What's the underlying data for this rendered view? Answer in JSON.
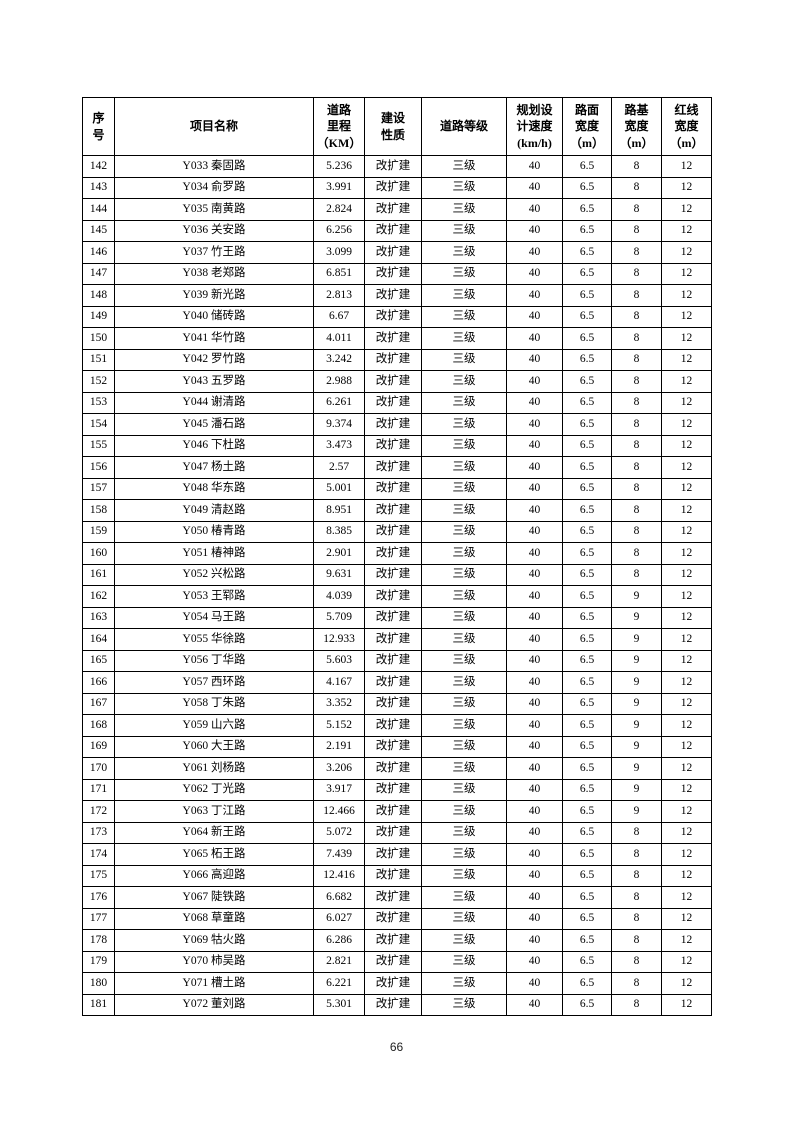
{
  "page": {
    "number": "66"
  },
  "table": {
    "headers": [
      "序\n号",
      "项目名称",
      "道路\n里程\n（KM）",
      "建设\n性质",
      "道路等级",
      "规划设\n计速度\n(km/h)",
      "路面\n宽度\n（m）",
      "路基\n宽度\n（m）",
      "红线\n宽度\n（m）"
    ],
    "rows": [
      [
        "142",
        "Y033 秦固路",
        "5.236",
        "改扩建",
        "三级",
        "40",
        "6.5",
        "8",
        "12"
      ],
      [
        "143",
        "Y034 俞罗路",
        "3.991",
        "改扩建",
        "三级",
        "40",
        "6.5",
        "8",
        "12"
      ],
      [
        "144",
        "Y035 南黄路",
        "2.824",
        "改扩建",
        "三级",
        "40",
        "6.5",
        "8",
        "12"
      ],
      [
        "145",
        "Y036 关安路",
        "6.256",
        "改扩建",
        "三级",
        "40",
        "6.5",
        "8",
        "12"
      ],
      [
        "146",
        "Y037 竹王路",
        "3.099",
        "改扩建",
        "三级",
        "40",
        "6.5",
        "8",
        "12"
      ],
      [
        "147",
        "Y038 老郑路",
        "6.851",
        "改扩建",
        "三级",
        "40",
        "6.5",
        "8",
        "12"
      ],
      [
        "148",
        "Y039 新光路",
        "2.813",
        "改扩建",
        "三级",
        "40",
        "6.5",
        "8",
        "12"
      ],
      [
        "149",
        "Y040 储砖路",
        "6.67",
        "改扩建",
        "三级",
        "40",
        "6.5",
        "8",
        "12"
      ],
      [
        "150",
        "Y041 华竹路",
        "4.011",
        "改扩建",
        "三级",
        "40",
        "6.5",
        "8",
        "12"
      ],
      [
        "151",
        "Y042 罗竹路",
        "3.242",
        "改扩建",
        "三级",
        "40",
        "6.5",
        "8",
        "12"
      ],
      [
        "152",
        "Y043 五罗路",
        "2.988",
        "改扩建",
        "三级",
        "40",
        "6.5",
        "8",
        "12"
      ],
      [
        "153",
        "Y044 谢清路",
        "6.261",
        "改扩建",
        "三级",
        "40",
        "6.5",
        "8",
        "12"
      ],
      [
        "154",
        "Y045 潘石路",
        "9.374",
        "改扩建",
        "三级",
        "40",
        "6.5",
        "8",
        "12"
      ],
      [
        "155",
        "Y046 下杜路",
        "3.473",
        "改扩建",
        "三级",
        "40",
        "6.5",
        "8",
        "12"
      ],
      [
        "156",
        "Y047 杨土路",
        "2.57",
        "改扩建",
        "三级",
        "40",
        "6.5",
        "8",
        "12"
      ],
      [
        "157",
        "Y048 华东路",
        "5.001",
        "改扩建",
        "三级",
        "40",
        "6.5",
        "8",
        "12"
      ],
      [
        "158",
        "Y049 清赵路",
        "8.951",
        "改扩建",
        "三级",
        "40",
        "6.5",
        "8",
        "12"
      ],
      [
        "159",
        "Y050 椿青路",
        "8.385",
        "改扩建",
        "三级",
        "40",
        "6.5",
        "8",
        "12"
      ],
      [
        "160",
        "Y051 椿神路",
        "2.901",
        "改扩建",
        "三级",
        "40",
        "6.5",
        "8",
        "12"
      ],
      [
        "161",
        "Y052 兴松路",
        "9.631",
        "改扩建",
        "三级",
        "40",
        "6.5",
        "8",
        "12"
      ],
      [
        "162",
        "Y053 王郓路",
        "4.039",
        "改扩建",
        "三级",
        "40",
        "6.5",
        "9",
        "12"
      ],
      [
        "163",
        "Y054 马王路",
        "5.709",
        "改扩建",
        "三级",
        "40",
        "6.5",
        "9",
        "12"
      ],
      [
        "164",
        "Y055 华徐路",
        "12.933",
        "改扩建",
        "三级",
        "40",
        "6.5",
        "9",
        "12"
      ],
      [
        "165",
        "Y056 丁华路",
        "5.603",
        "改扩建",
        "三级",
        "40",
        "6.5",
        "9",
        "12"
      ],
      [
        "166",
        "Y057 西环路",
        "4.167",
        "改扩建",
        "三级",
        "40",
        "6.5",
        "9",
        "12"
      ],
      [
        "167",
        "Y058 丁朱路",
        "3.352",
        "改扩建",
        "三级",
        "40",
        "6.5",
        "9",
        "12"
      ],
      [
        "168",
        "Y059 山六路",
        "5.152",
        "改扩建",
        "三级",
        "40",
        "6.5",
        "9",
        "12"
      ],
      [
        "169",
        "Y060 大王路",
        "2.191",
        "改扩建",
        "三级",
        "40",
        "6.5",
        "9",
        "12"
      ],
      [
        "170",
        "Y061 刘杨路",
        "3.206",
        "改扩建",
        "三级",
        "40",
        "6.5",
        "9",
        "12"
      ],
      [
        "171",
        "Y062 丁光路",
        "3.917",
        "改扩建",
        "三级",
        "40",
        "6.5",
        "9",
        "12"
      ],
      [
        "172",
        "Y063 丁江路",
        "12.466",
        "改扩建",
        "三级",
        "40",
        "6.5",
        "9",
        "12"
      ],
      [
        "173",
        "Y064 新王路",
        "5.072",
        "改扩建",
        "三级",
        "40",
        "6.5",
        "8",
        "12"
      ],
      [
        "174",
        "Y065 柘王路",
        "7.439",
        "改扩建",
        "三级",
        "40",
        "6.5",
        "8",
        "12"
      ],
      [
        "175",
        "Y066 高迎路",
        "12.416",
        "改扩建",
        "三级",
        "40",
        "6.5",
        "8",
        "12"
      ],
      [
        "176",
        "Y067 陡铁路",
        "6.682",
        "改扩建",
        "三级",
        "40",
        "6.5",
        "8",
        "12"
      ],
      [
        "177",
        "Y068 草童路",
        "6.027",
        "改扩建",
        "三级",
        "40",
        "6.5",
        "8",
        "12"
      ],
      [
        "178",
        "Y069 牯火路",
        "6.286",
        "改扩建",
        "三级",
        "40",
        "6.5",
        "8",
        "12"
      ],
      [
        "179",
        "Y070 柿吴路",
        "2.821",
        "改扩建",
        "三级",
        "40",
        "6.5",
        "8",
        "12"
      ],
      [
        "180",
        "Y071 槽土路",
        "6.221",
        "改扩建",
        "三级",
        "40",
        "6.5",
        "8",
        "12"
      ],
      [
        "181",
        "Y072 董刘路",
        "5.301",
        "改扩建",
        "三级",
        "40",
        "6.5",
        "8",
        "12"
      ]
    ]
  }
}
